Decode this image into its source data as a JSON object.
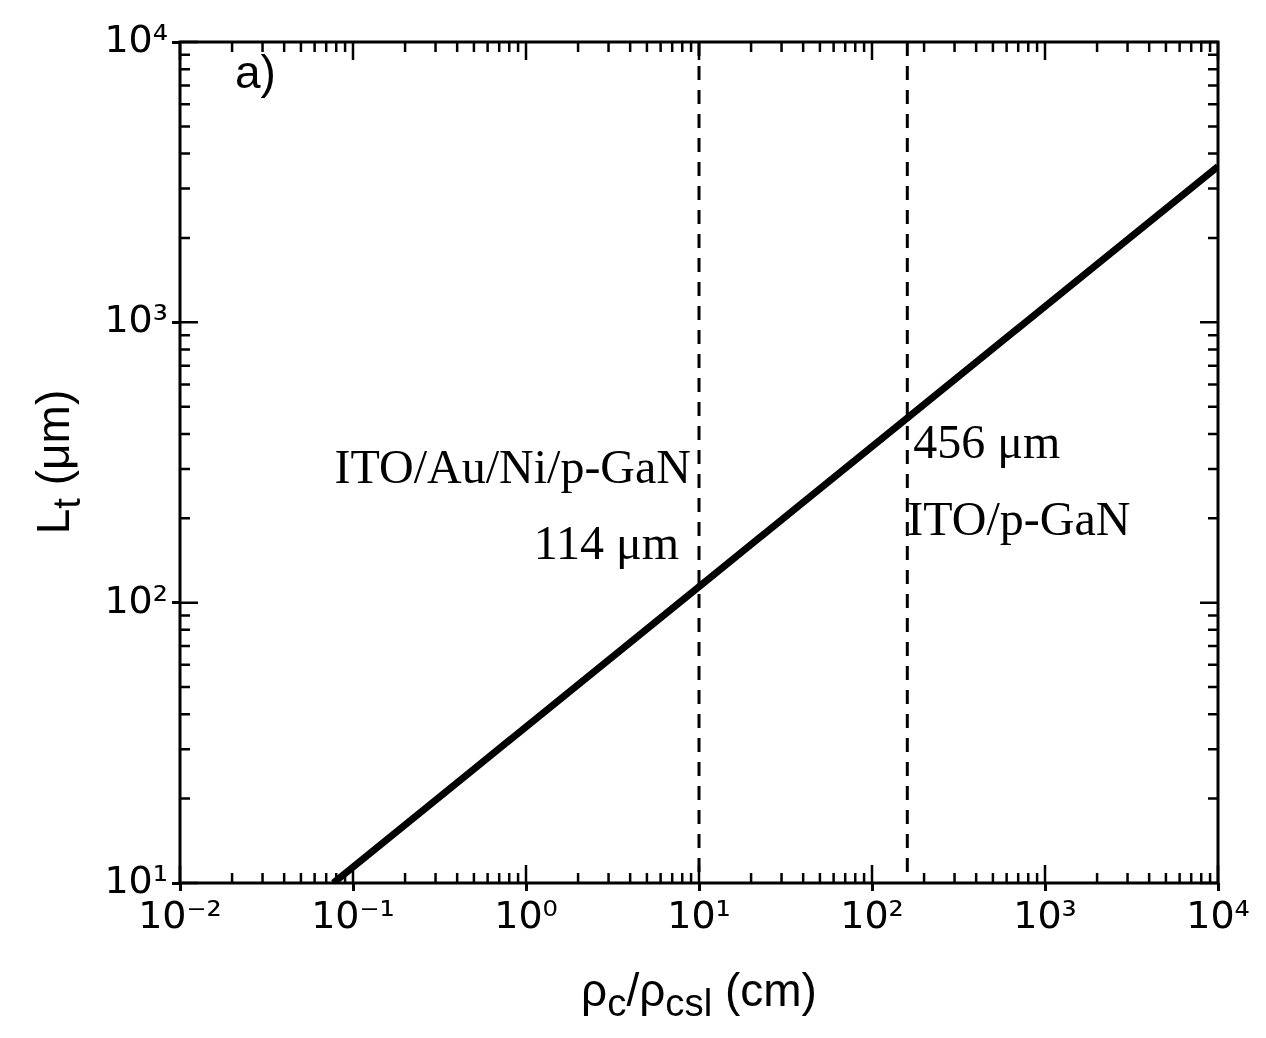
{
  "chart_data": {
    "type": "line",
    "xlabel": "ρ$_{c}$/ρ$_{csl}$ (cm)",
    "ylabel": "L$_{t}$ (μm)",
    "x": [
      0.077,
      10,
      160,
      10000
    ],
    "series": [
      {
        "color": "#000000",
        "values": [
          10,
          114,
          456,
          3600
        ]
      }
    ],
    "log": "xy",
    "marker": "none",
    "line_style": "solid",
    "xlim": [
      0.01,
      10000
    ],
    "ylim": [
      10,
      10000
    ],
    "xticks": [
      {
        "value": 0.01,
        "label": "10⁻²"
      },
      {
        "value": 0.1,
        "label": "10⁻¹"
      },
      {
        "value": 1,
        "label": "10⁰"
      },
      {
        "value": 10,
        "label": "10¹"
      },
      {
        "value": 100,
        "label": "10²"
      },
      {
        "value": 1000,
        "label": "10³"
      },
      {
        "value": 10000,
        "label": "10⁴"
      }
    ],
    "yticks": [
      {
        "value": 10,
        "label": "10¹"
      },
      {
        "value": 100,
        "label": "10²"
      },
      {
        "value": 1000,
        "label": "10³"
      },
      {
        "value": 10000,
        "label": "10⁴"
      }
    ],
    "ref_lines": [
      {
        "axis": "x",
        "value": 10,
        "color": "#000000",
        "line_style": "dashed"
      },
      {
        "axis": "x",
        "value": 160,
        "color": "#000000",
        "line_style": "dashed"
      }
    ],
    "annotations": [
      "a)",
      "ITO/Au/Ni/p-GaN",
      "114 μm",
      "456 μm",
      "ITO/p-GaN"
    ]
  }
}
